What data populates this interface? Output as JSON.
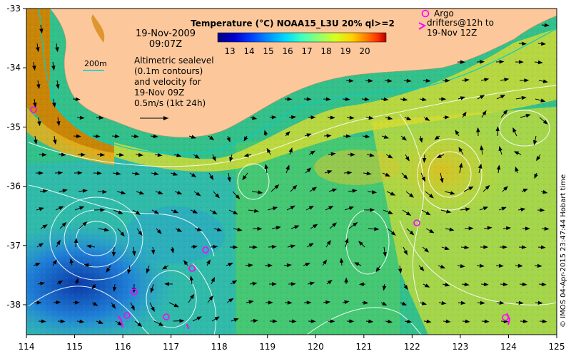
{
  "title": "Temperature (°C) NOAA15_L3U 20% ql>=2",
  "date": "19-Nov-2009",
  "time": "09:07Z",
  "scale_label": "200m",
  "annotation_lines": [
    "Altimetric sealevel",
    "(0.1m contours)",
    "and velocity for",
    "19-Nov 09Z",
    "0.5m/s (1kt 24h)"
  ],
  "argo_label": "Argo",
  "drifters_lines": [
    "drifters@12h to",
    "19-Nov 12Z"
  ],
  "credit": "© IMOS 04-Apr-2015 23:47:44 Hobart time",
  "colorbar": {
    "ticks": [
      "13",
      "14",
      "15",
      "16",
      "17",
      "18",
      "19",
      "20"
    ],
    "colors": [
      "#00007f",
      "#0000d0",
      "#0040ff",
      "#0090ff",
      "#00d8ff",
      "#40ffc0",
      "#90ff70",
      "#d8ff20",
      "#ffd000",
      "#ff8000",
      "#ff3000",
      "#b00000"
    ]
  },
  "x_ticks": [
    "114",
    "115",
    "116",
    "117",
    "118",
    "119",
    "120",
    "121",
    "122",
    "123",
    "124",
    "125"
  ],
  "y_ticks": [
    "-33",
    "-34",
    "-35",
    "-36",
    "-37",
    "-38"
  ],
  "colors": {
    "land": "#fcc89b",
    "ocean_cool": "#2fa4d8",
    "ocean_mid": "#33c08a",
    "ocean_warm": "#c8dc3a",
    "coastal_warm": "#d28200",
    "contour": "#ffffff",
    "isobath": "#00cdd4",
    "argo": "#ff00ff",
    "vector": "#000000"
  }
}
